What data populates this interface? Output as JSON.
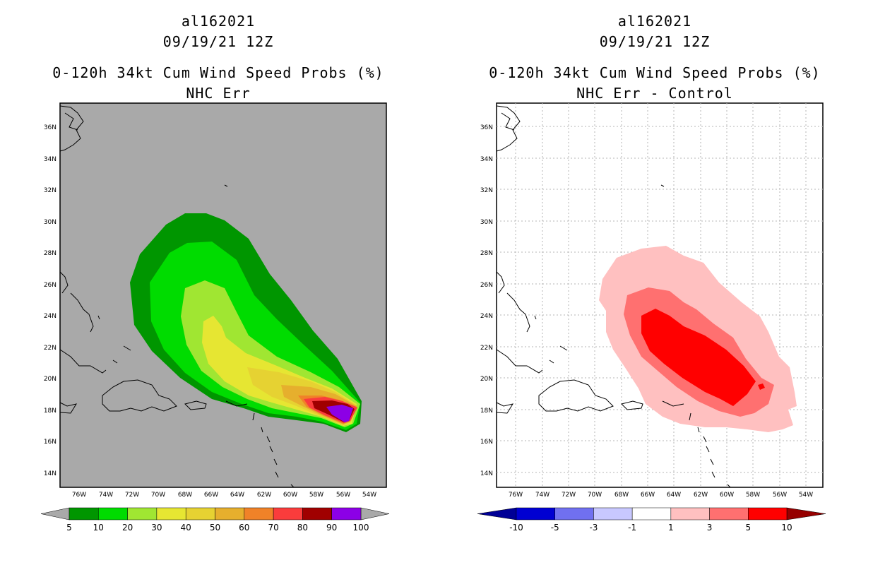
{
  "panels": [
    {
      "storm_id": "al162021",
      "datetime": "09/19/21 12Z",
      "title": "0-120h 34kt Cum Wind Speed Probs (%)",
      "subtitle": "NHC Err",
      "background_color": "#a9a9a9",
      "colorbar": {
        "colors": [
          "#009600",
          "#00dc00",
          "#a0e632",
          "#e6e632",
          "#e6d232",
          "#e6af2d",
          "#f08228",
          "#fa3c3c",
          "#a00000",
          "#8c00e6"
        ],
        "labels": [
          "5",
          "10",
          "20",
          "30",
          "40",
          "50",
          "60",
          "70",
          "80",
          "90",
          "100"
        ],
        "end_color": "#a9a9a9"
      }
    },
    {
      "storm_id": "al162021",
      "datetime": "09/19/21 12Z",
      "title": "0-120h 34kt Cum Wind Speed Probs (%)",
      "subtitle": "NHC Err - Control",
      "background_color": "#ffffff",
      "colorbar": {
        "colors": [
          "#0000d2",
          "#7070f0",
          "#c8c8ff",
          "#ffffff",
          "#ffc0c0",
          "#ff7070",
          "#ff0000"
        ],
        "labels": [
          "-10",
          "-5",
          "-3",
          "-1",
          "1",
          "3",
          "5",
          "10"
        ],
        "low_end_color": "#000096",
        "high_end_color": "#960000"
      }
    }
  ],
  "axes": {
    "lat_labels": [
      "36N",
      "34N",
      "32N",
      "30N",
      "28N",
      "26N",
      "24N",
      "22N",
      "20N",
      "18N",
      "16N",
      "14N"
    ],
    "lon_labels": [
      "76W",
      "74W",
      "72W",
      "70W",
      "68W",
      "66W",
      "64W",
      "62W",
      "60W",
      "58W",
      "56W",
      "54W"
    ]
  }
}
